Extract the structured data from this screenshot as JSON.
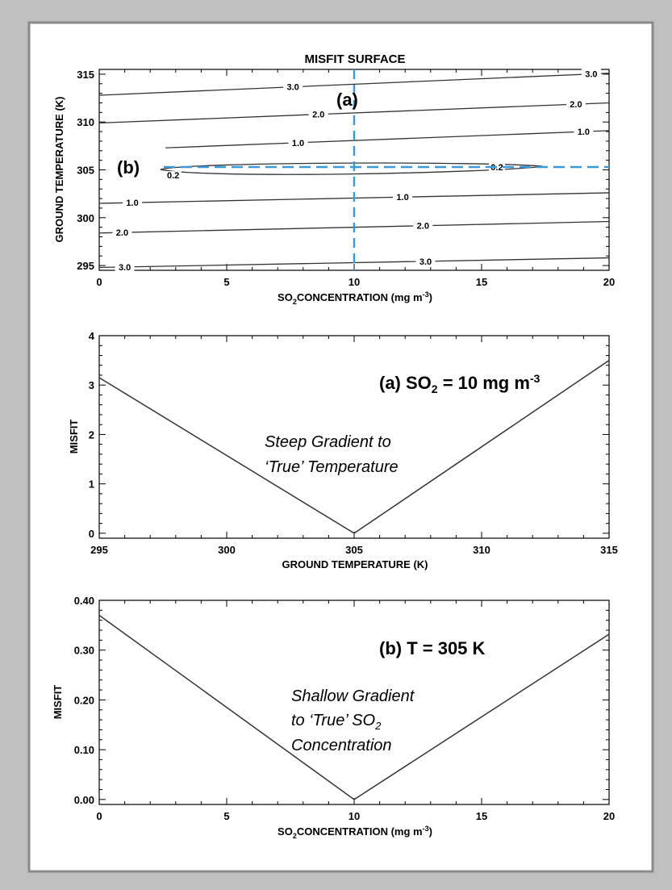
{
  "chart_data": [
    {
      "type": "contour",
      "title": "MISFIT SURFACE",
      "xlabel": "CONCENTRATION (mg m",
      "ylabel": "GROUND TEMPERATURE (K)",
      "xlim": [
        0,
        20
      ],
      "ylim": [
        294.5,
        315.5
      ],
      "xticks": [
        0,
        5,
        10,
        15,
        20
      ],
      "yticks": [
        295,
        300,
        305,
        310,
        315
      ],
      "contours": [
        {
          "label": "3.0",
          "x": [
            0,
            20
          ],
          "y": [
            312.8,
            315.1
          ],
          "label_x": [
            7.6,
            19.3
          ]
        },
        {
          "label": "2.0",
          "x": [
            0,
            20
          ],
          "y": [
            309.9,
            312.0
          ],
          "label_x": [
            8.6,
            18.7
          ]
        },
        {
          "label": "1.0",
          "x": [
            2.6,
            20
          ],
          "y": [
            307.3,
            309.1
          ],
          "label_x": [
            7.8,
            19.0
          ]
        },
        {
          "label": "1.0",
          "x": [
            0,
            20
          ],
          "y": [
            301.5,
            302.6
          ],
          "label_x": [
            1.3,
            11.9
          ]
        },
        {
          "label": "2.0",
          "x": [
            0,
            20
          ],
          "y": [
            298.4,
            299.6
          ],
          "label_x": [
            0.9,
            12.7
          ]
        },
        {
          "label": "3.0",
          "x": [
            0,
            20
          ],
          "y": [
            294.8,
            295.8
          ],
          "label_x": [
            1.0,
            12.8
          ]
        },
        {
          "label": "0.2",
          "type": "ellipse",
          "x_range": [
            2.4,
            17.4
          ],
          "y_center": 305.2,
          "label_x": [
            2.9,
            15.6
          ]
        }
      ],
      "markers": [
        {
          "label": "(a)",
          "axis": "vertical",
          "value": 10,
          "color": "#3a9ad9"
        },
        {
          "label": "(b)",
          "axis": "horizontal",
          "value": 305.3,
          "color": "#3a9ad9"
        }
      ]
    },
    {
      "type": "line",
      "title": "(a) SO",
      "title_unit": " = 10 mg m",
      "xlabel": "GROUND TEMPERATURE (K)",
      "ylabel": "MISFIT",
      "x": [
        295,
        305,
        315
      ],
      "series": [
        {
          "values": [
            3.15,
            0,
            3.5
          ]
        }
      ],
      "xlim": [
        295,
        315
      ],
      "ylim": [
        -0.1,
        4
      ],
      "xticks": [
        295,
        300,
        305,
        310,
        315
      ],
      "yticks": [
        0,
        1,
        2,
        3,
        4
      ],
      "annotation": [
        "Steep Gradient to",
        "‘True’ Temperature"
      ]
    },
    {
      "type": "line",
      "title": "(b) T = 305 K",
      "xlabel": "CONCENTRATION (mg m",
      "ylabel": "MISFIT",
      "x": [
        0,
        10,
        20
      ],
      "series": [
        {
          "values": [
            0.37,
            0,
            0.332
          ]
        }
      ],
      "xlim": [
        0,
        20
      ],
      "ylim": [
        -0.01,
        0.4
      ],
      "xticks": [
        0,
        5,
        10,
        15,
        20
      ],
      "yticks": [
        "0.00",
        "0.10",
        "0.20",
        "0.30",
        "0.40"
      ],
      "annotation": [
        "Shallow Gradient",
        "to ‘True’  SO",
        "Concentration"
      ]
    }
  ],
  "labels": {
    "so": "SO",
    "sub2": "2",
    "sup_neg3": "-3",
    "close_paren": ")"
  },
  "colors": {
    "line": "#333333",
    "marker": "#3a9ad9",
    "background": "#c0c0c0",
    "panel": "#ffffff"
  }
}
